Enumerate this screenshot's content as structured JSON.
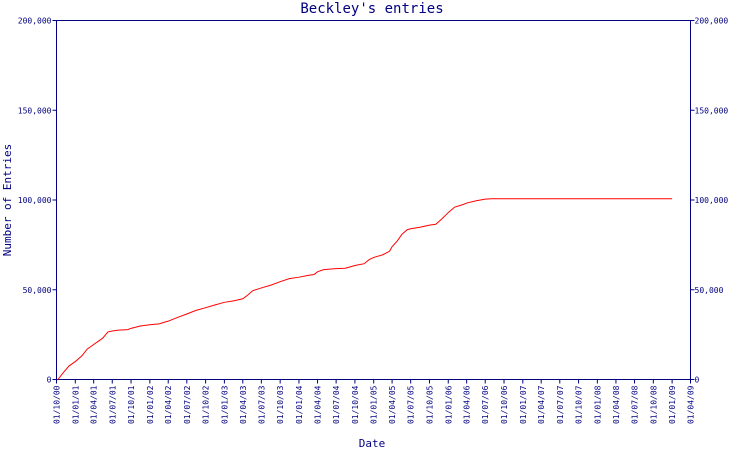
{
  "chart_data": {
    "type": "line",
    "title": "Beckley's entries",
    "xlabel": "Date",
    "ylabel": "Number of Entries",
    "ylim": [
      0,
      200000
    ],
    "xlim": [
      "2000-10-01",
      "2009-04-01"
    ],
    "y_ticks": [
      0,
      50000,
      100000,
      150000,
      200000
    ],
    "y_tick_labels": [
      "0",
      "50,000",
      "100,000",
      "150,000",
      "200,000"
    ],
    "right_axis_mirrored": true,
    "grid": false,
    "line_color": "#ff0000",
    "axis_color": "#000080",
    "x_ticks": [
      {
        "date": "2000-10-01",
        "label": "01/10/00"
      },
      {
        "date": "2001-01-01",
        "label": "01/01/01"
      },
      {
        "date": "2001-04-01",
        "label": "01/04/01"
      },
      {
        "date": "2001-07-01",
        "label": "01/07/01"
      },
      {
        "date": "2001-10-01",
        "label": "01/10/01"
      },
      {
        "date": "2002-01-01",
        "label": "01/01/02"
      },
      {
        "date": "2002-04-01",
        "label": "01/04/02"
      },
      {
        "date": "2002-07-01",
        "label": "01/07/02"
      },
      {
        "date": "2002-10-01",
        "label": "01/10/02"
      },
      {
        "date": "2003-01-01",
        "label": "01/01/03"
      },
      {
        "date": "2003-04-01",
        "label": "01/04/03"
      },
      {
        "date": "2003-07-01",
        "label": "01/07/03"
      },
      {
        "date": "2003-10-01",
        "label": "01/10/03"
      },
      {
        "date": "2004-01-01",
        "label": "01/01/04"
      },
      {
        "date": "2004-04-01",
        "label": "01/04/04"
      },
      {
        "date": "2004-07-01",
        "label": "01/07/04"
      },
      {
        "date": "2004-10-01",
        "label": "01/10/04"
      },
      {
        "date": "2005-01-01",
        "label": "01/01/05"
      },
      {
        "date": "2005-04-01",
        "label": "01/04/05"
      },
      {
        "date": "2005-07-01",
        "label": "01/07/05"
      },
      {
        "date": "2005-10-01",
        "label": "01/10/05"
      },
      {
        "date": "2006-01-01",
        "label": "01/01/06"
      },
      {
        "date": "2006-04-01",
        "label": "01/04/06"
      },
      {
        "date": "2006-07-01",
        "label": "01/07/06"
      },
      {
        "date": "2006-10-01",
        "label": "01/10/06"
      },
      {
        "date": "2007-01-01",
        "label": "01/01/07"
      },
      {
        "date": "2007-04-01",
        "label": "01/04/07"
      },
      {
        "date": "2007-07-01",
        "label": "01/07/07"
      },
      {
        "date": "2007-10-01",
        "label": "01/10/07"
      },
      {
        "date": "2008-01-01",
        "label": "01/01/08"
      },
      {
        "date": "2008-04-01",
        "label": "01/04/08"
      },
      {
        "date": "2008-07-01",
        "label": "01/07/08"
      },
      {
        "date": "2008-10-01",
        "label": "01/10/08"
      },
      {
        "date": "2009-01-01",
        "label": "01/01/09"
      },
      {
        "date": "2009-04-01",
        "label": "01/04/09"
      }
    ],
    "series": [
      {
        "points": [
          {
            "x": "2000-10-08",
            "y": 0
          },
          {
            "x": "2000-11-01",
            "y": 3500
          },
          {
            "x": "2000-12-01",
            "y": 7500
          },
          {
            "x": "2001-01-01",
            "y": 10000
          },
          {
            "x": "2001-02-01",
            "y": 13000
          },
          {
            "x": "2001-03-01",
            "y": 17000
          },
          {
            "x": "2001-04-01",
            "y": 19500
          },
          {
            "x": "2001-05-15",
            "y": 23000
          },
          {
            "x": "2001-06-10",
            "y": 26500
          },
          {
            "x": "2001-07-01",
            "y": 27000
          },
          {
            "x": "2001-08-01",
            "y": 27500
          },
          {
            "x": "2001-09-15",
            "y": 27800
          },
          {
            "x": "2001-10-01",
            "y": 28500
          },
          {
            "x": "2001-11-15",
            "y": 29800
          },
          {
            "x": "2002-01-01",
            "y": 30500
          },
          {
            "x": "2002-02-15",
            "y": 31000
          },
          {
            "x": "2002-04-01",
            "y": 32500
          },
          {
            "x": "2002-05-15",
            "y": 34500
          },
          {
            "x": "2002-07-01",
            "y": 36500
          },
          {
            "x": "2002-08-15",
            "y": 38500
          },
          {
            "x": "2002-10-01",
            "y": 40000
          },
          {
            "x": "2002-11-15",
            "y": 41500
          },
          {
            "x": "2003-01-01",
            "y": 43000
          },
          {
            "x": "2003-02-15",
            "y": 43800
          },
          {
            "x": "2003-04-01",
            "y": 45000
          },
          {
            "x": "2003-04-25",
            "y": 47000
          },
          {
            "x": "2003-05-20",
            "y": 49500
          },
          {
            "x": "2003-07-01",
            "y": 51000
          },
          {
            "x": "2003-08-15",
            "y": 52500
          },
          {
            "x": "2003-10-01",
            "y": 54500
          },
          {
            "x": "2003-11-15",
            "y": 56200
          },
          {
            "x": "2004-01-01",
            "y": 57000
          },
          {
            "x": "2004-02-15",
            "y": 58000
          },
          {
            "x": "2004-03-15",
            "y": 58500
          },
          {
            "x": "2004-04-01",
            "y": 60000
          },
          {
            "x": "2004-05-01",
            "y": 61200
          },
          {
            "x": "2004-07-01",
            "y": 61800
          },
          {
            "x": "2004-08-15",
            "y": 62000
          },
          {
            "x": "2004-10-01",
            "y": 63500
          },
          {
            "x": "2004-11-15",
            "y": 64500
          },
          {
            "x": "2004-12-10",
            "y": 66800
          },
          {
            "x": "2005-01-01",
            "y": 68000
          },
          {
            "x": "2005-02-15",
            "y": 69500
          },
          {
            "x": "2005-03-20",
            "y": 71500
          },
          {
            "x": "2005-04-01",
            "y": 74000
          },
          {
            "x": "2005-04-25",
            "y": 77000
          },
          {
            "x": "2005-05-20",
            "y": 81000
          },
          {
            "x": "2005-06-15",
            "y": 83500
          },
          {
            "x": "2005-07-01",
            "y": 84000
          },
          {
            "x": "2005-08-15",
            "y": 84800
          },
          {
            "x": "2005-10-01",
            "y": 86000
          },
          {
            "x": "2005-11-01",
            "y": 86500
          },
          {
            "x": "2005-12-01",
            "y": 89500
          },
          {
            "x": "2006-01-01",
            "y": 93000
          },
          {
            "x": "2006-02-01",
            "y": 96000
          },
          {
            "x": "2006-03-15",
            "y": 97500
          },
          {
            "x": "2006-04-01",
            "y": 98300
          },
          {
            "x": "2006-05-15",
            "y": 99500
          },
          {
            "x": "2006-07-01",
            "y": 100500
          },
          {
            "x": "2006-08-01",
            "y": 100700
          },
          {
            "x": "2009-01-01",
            "y": 100700
          }
        ]
      }
    ]
  }
}
